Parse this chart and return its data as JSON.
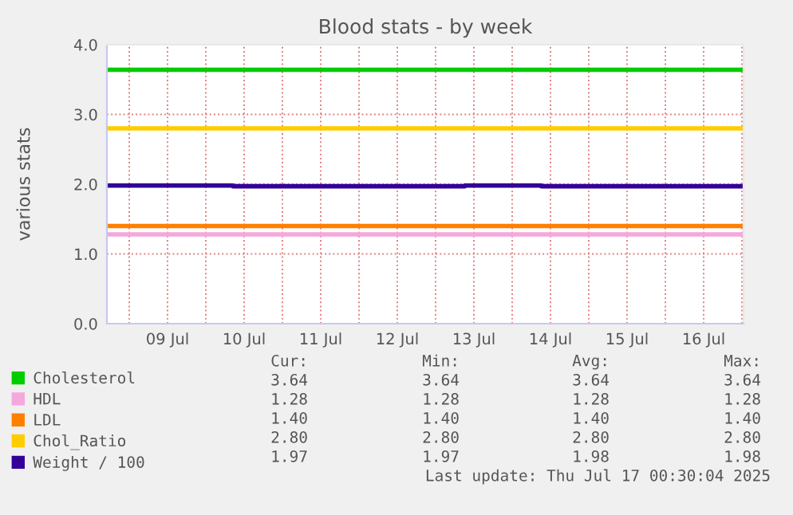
{
  "chart_data": {
    "type": "line",
    "title": "Blood stats - by week",
    "ylabel": "various stats",
    "xlim": [
      "2025-07-08T17:00",
      "2025-07-17T00:30"
    ],
    "xticks": [
      {
        "value": "2025-07-09T00:00",
        "label": null
      },
      {
        "value": "2025-07-09T12:00",
        "label": "09 Jul"
      },
      {
        "value": "2025-07-10T00:00",
        "label": null
      },
      {
        "value": "2025-07-10T12:00",
        "label": "10 Jul"
      },
      {
        "value": "2025-07-11T00:00",
        "label": null
      },
      {
        "value": "2025-07-11T12:00",
        "label": "11 Jul"
      },
      {
        "value": "2025-07-12T00:00",
        "label": null
      },
      {
        "value": "2025-07-12T12:00",
        "label": "12 Jul"
      },
      {
        "value": "2025-07-13T00:00",
        "label": null
      },
      {
        "value": "2025-07-13T12:00",
        "label": "13 Jul"
      },
      {
        "value": "2025-07-14T00:00",
        "label": null
      },
      {
        "value": "2025-07-14T12:00",
        "label": "14 Jul"
      },
      {
        "value": "2025-07-15T00:00",
        "label": null
      },
      {
        "value": "2025-07-15T12:00",
        "label": "15 Jul"
      },
      {
        "value": "2025-07-16T00:00",
        "label": null
      },
      {
        "value": "2025-07-16T12:00",
        "label": "16 Jul"
      },
      {
        "value": "2025-07-17T00:00",
        "label": null
      }
    ],
    "ylim": [
      0,
      4
    ],
    "yticks": [
      {
        "value": 0,
        "label": "0.0"
      },
      {
        "value": 1,
        "label": "1.0"
      },
      {
        "value": 2,
        "label": "2.0"
      },
      {
        "value": 3,
        "label": "3.0"
      },
      {
        "value": 4,
        "label": "4.0"
      }
    ],
    "grid": true,
    "legend": "bottom left",
    "line_style": "solid",
    "marker": "none",
    "series": [
      {
        "name": "Cholesterol",
        "color": "#00cc00",
        "x": [
          "2025-07-08T17:00",
          "2025-07-17T00:30"
        ],
        "values": [
          3.64,
          3.64
        ]
      },
      {
        "name": "HDL",
        "color": "#f4a8dc",
        "x": [
          "2025-07-08T17:00",
          "2025-07-17T00:30"
        ],
        "values": [
          1.28,
          1.28
        ]
      },
      {
        "name": "LDL",
        "color": "#ff7f00",
        "x": [
          "2025-07-08T17:00",
          "2025-07-17T00:30"
        ],
        "values": [
          1.4,
          1.4
        ]
      },
      {
        "name": "Chol_Ratio",
        "color": "#ffcc00",
        "x": [
          "2025-07-08T17:00",
          "2025-07-17T00:30"
        ],
        "values": [
          2.8,
          2.8
        ]
      },
      {
        "name": "Weight / 100",
        "color": "#330099",
        "type": "step",
        "x": [
          "2025-07-08T17:00",
          "2025-07-10T08:30",
          "2025-07-13T09:10",
          "2025-07-14T09:10",
          "2025-07-17T00:30"
        ],
        "values": [
          1.98,
          1.97,
          1.98,
          1.97,
          1.97
        ]
      }
    ],
    "annotations": [
      "Cur:",
      "Min:",
      "Avg:",
      "Max:",
      "3.64",
      "3.64",
      "3.64",
      "3.64",
      "1.28",
      "1.28",
      "1.28",
      "1.28",
      "1.40",
      "1.40",
      "1.40",
      "1.40",
      "2.80",
      "2.80",
      "2.80",
      "2.80",
      "1.97",
      "1.97",
      "1.98",
      "1.98",
      "Last update: Thu Jul 17 00:30:04 2025"
    ]
  }
}
